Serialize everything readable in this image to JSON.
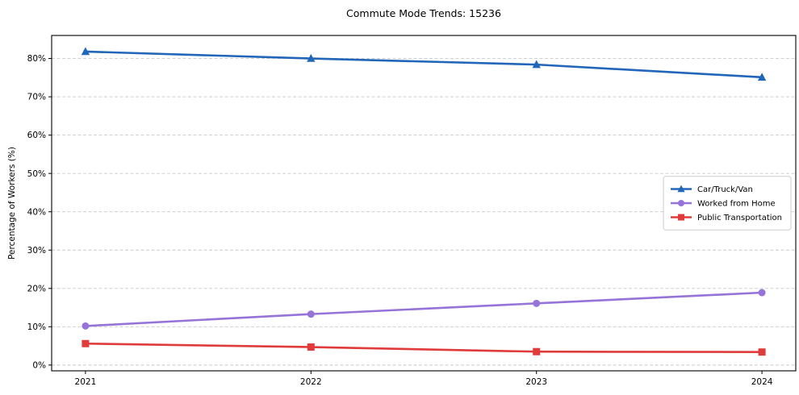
{
  "chart_data": {
    "type": "line",
    "title": "Commute Mode Trends: 15236",
    "xlabel": "",
    "ylabel": "Percentage of Workers (%)",
    "x": [
      2021,
      2022,
      2023,
      2024
    ],
    "x_tick_labels": [
      "2021",
      "2022",
      "2023",
      "2024"
    ],
    "series": [
      {
        "name": "Car/Truck/Van",
        "values": [
          81.8,
          80.0,
          78.4,
          75.1
        ],
        "color": "#2166b8",
        "marker": "triangle"
      },
      {
        "name": "Worked from Home",
        "values": [
          10.2,
          13.3,
          16.1,
          18.9
        ],
        "color": "#9673d8",
        "marker": "circle"
      },
      {
        "name": "Public Transportation",
        "values": [
          5.6,
          4.7,
          3.5,
          3.4
        ],
        "color": "#e03b3b",
        "marker": "square"
      }
    ],
    "ylim": [
      -1.5,
      86
    ],
    "yticks": [
      0,
      10,
      20,
      30,
      40,
      50,
      60,
      70,
      80
    ],
    "ytick_suffix": "%",
    "grid": "horizontal-dashed",
    "grid_color": "#c9c9c9",
    "legend_position": "center-right",
    "frame_color": "#000000",
    "background_color": "#ffffff"
  }
}
